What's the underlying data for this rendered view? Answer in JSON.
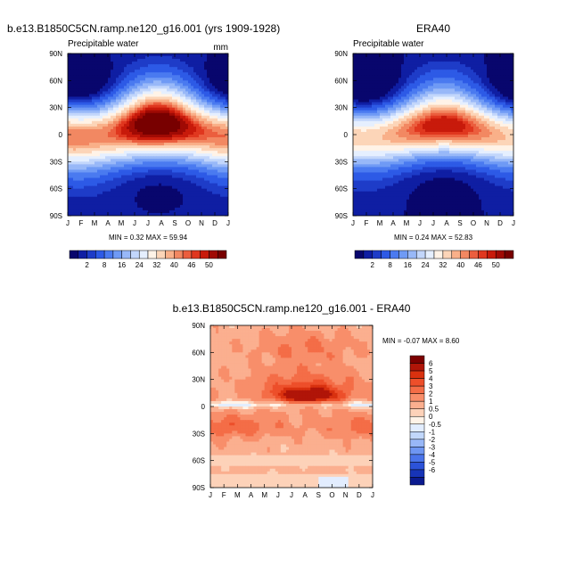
{
  "chart_data": [
    {
      "type": "heatmap",
      "title": "b.e13.B1850C5CN.ramp.ne120_g16.001 (yrs 1909-1928)",
      "subtitle": "Precipitable water",
      "units": "mm",
      "x_ticks": [
        "J",
        "F",
        "M",
        "A",
        "M",
        "J",
        "J",
        "A",
        "S",
        "O",
        "N",
        "D",
        "J"
      ],
      "y_ticks": [
        "90N",
        "60N",
        "30N",
        "0",
        "30S",
        "60S",
        "90S"
      ],
      "stats": "MIN =   0.32 MAX =  59.94",
      "field": "model"
    },
    {
      "type": "heatmap",
      "title": "ERA40",
      "subtitle": "Precipitable water",
      "units": "",
      "x_ticks": [
        "J",
        "F",
        "M",
        "A",
        "M",
        "J",
        "J",
        "A",
        "S",
        "O",
        "N",
        "D",
        "J"
      ],
      "y_ticks": [
        "90N",
        "60N",
        "30N",
        "0",
        "30S",
        "60S",
        "90S"
      ],
      "stats": "MIN =   0.24 MAX =  52.83",
      "field": "obs"
    },
    {
      "type": "heatmap",
      "title": "b.e13.B1850C5CN.ramp.ne120_g16.001 - ERA40",
      "x_ticks": [
        "J",
        "F",
        "M",
        "A",
        "M",
        "J",
        "J",
        "A",
        "S",
        "O",
        "N",
        "D",
        "J"
      ],
      "y_ticks": [
        "90N",
        "60N",
        "30N",
        "0",
        "30S",
        "60S",
        "90S"
      ],
      "stats": "MIN =  -0.07 MAX =   8.60",
      "field": "diff"
    }
  ],
  "colorbar_top": {
    "labels": [
      "2",
      "8",
      "16",
      "24",
      "32",
      "40",
      "46",
      "50"
    ],
    "colors": [
      "#08066d",
      "#0f1ea3",
      "#1e3cc8",
      "#2d5ae6",
      "#4a7af0",
      "#6f9af5",
      "#98b8f8",
      "#c2d6fb",
      "#e5efff",
      "#fff3e7",
      "#fcd5b8",
      "#f9b089",
      "#f28862",
      "#eb5e3e",
      "#e0371f",
      "#c81a0b",
      "#a00a04",
      "#780000"
    ]
  },
  "colorbar_diff": {
    "labels": [
      "6",
      "5",
      "4",
      "3",
      "2",
      "1",
      "0.5",
      "0",
      "-0.5",
      "-1",
      "-2",
      "-3",
      "-4",
      "-5",
      "-6"
    ],
    "colors": [
      "#7c0000",
      "#b01508",
      "#d9310f",
      "#ed4f2a",
      "#f46d47",
      "#f88e6a",
      "#fbaf8f",
      "#fdd2b9",
      "#fff3e8",
      "#e2edff",
      "#c1d7fb",
      "#98b7f7",
      "#6e96f2",
      "#4a74ea",
      "#2c53d9",
      "#1734b7",
      "#0b1a8f"
    ]
  }
}
